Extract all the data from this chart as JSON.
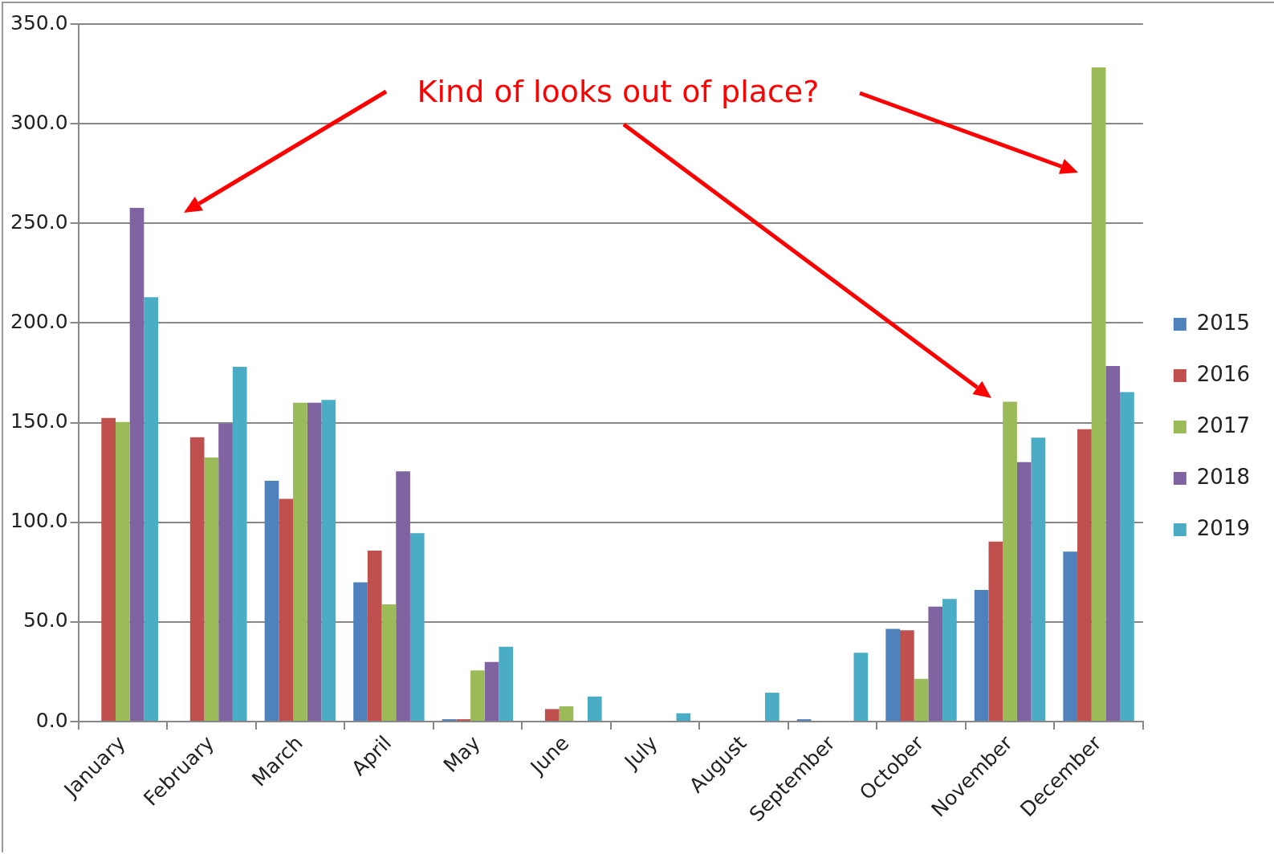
{
  "chart_data": {
    "type": "bar",
    "categories": [
      "January",
      "February",
      "March",
      "April",
      "May",
      "June",
      "July",
      "August",
      "September",
      "October",
      "November",
      "December"
    ],
    "series": [
      {
        "name": "2015",
        "color": "#4f81bd",
        "values": [
          0,
          0,
          120.8,
          69.9,
          1.2,
          0,
          0,
          0,
          1.2,
          46.5,
          66.1,
          85.3
        ]
      },
      {
        "name": "2016",
        "color": "#c0504d",
        "values": [
          152.4,
          142.7,
          111.8,
          85.8,
          1.2,
          6.3,
          0,
          0,
          0,
          45.8,
          90.3,
          146.7
        ]
      },
      {
        "name": "2017",
        "color": "#9bbb59",
        "values": [
          150.3,
          132.5,
          160.0,
          58.8,
          25.7,
          7.7,
          0,
          0,
          0,
          21.5,
          160.5,
          328.3
        ]
      },
      {
        "name": "2018",
        "color": "#8064a2",
        "values": [
          257.8,
          149.5,
          160.0,
          125.6,
          29.9,
          0,
          0,
          0,
          0,
          57.7,
          130.2,
          178.4
        ]
      },
      {
        "name": "2019",
        "color": "#4bacc6",
        "values": [
          213.0,
          178.0,
          161.4,
          94.6,
          37.6,
          12.6,
          4.2,
          14.5,
          34.6,
          61.5,
          142.5,
          165.4
        ]
      }
    ],
    "ylim": [
      0,
      350
    ],
    "yticks": [
      {
        "value": 0,
        "label": "0.0"
      },
      {
        "value": 50,
        "label": "50.0"
      },
      {
        "value": 100,
        "label": "100.0"
      },
      {
        "value": 150,
        "label": "150.0"
      },
      {
        "value": 200,
        "label": "200.0"
      },
      {
        "value": 250,
        "label": "250.0"
      },
      {
        "value": 300,
        "label": "300.0"
      },
      {
        "value": 350,
        "label": "350.0"
      }
    ],
    "grid": "y",
    "legend": "right",
    "annotations": [
      "Kind of looks out of place?"
    ]
  }
}
